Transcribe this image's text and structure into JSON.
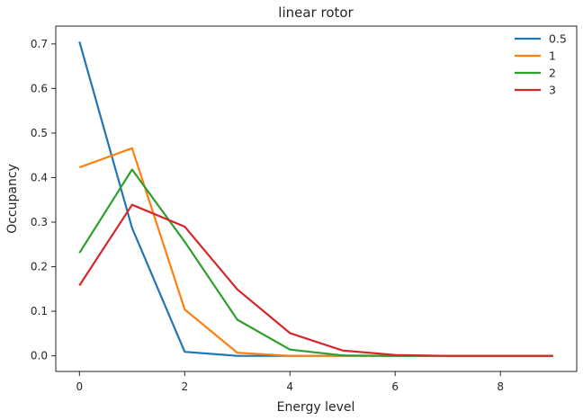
{
  "chart_data": {
    "type": "line",
    "title": "linear rotor",
    "xlabel": "Energy level",
    "ylabel": "Occupancy",
    "xlim": [
      -0.45,
      9.45
    ],
    "ylim": [
      -0.035,
      0.74
    ],
    "xticks": [
      0,
      2,
      4,
      6,
      8
    ],
    "yticks": [
      0.0,
      0.1,
      0.2,
      0.3,
      0.4,
      0.5,
      0.6,
      0.7
    ],
    "xtick_labels": [
      "0",
      "2",
      "4",
      "6",
      "8"
    ],
    "ytick_labels": [
      "0.0",
      "0.1",
      "0.2",
      "0.3",
      "0.4",
      "0.5",
      "0.6",
      "0.7"
    ],
    "grid": false,
    "legend_position": "top-right",
    "x": [
      0,
      1,
      2,
      3,
      4,
      5,
      6,
      7,
      8,
      9
    ],
    "series": [
      {
        "name": "0.5",
        "color": "#1f77b4",
        "values": [
          0.705,
          0.287,
          0.009,
          0.0,
          0.0,
          0.0,
          0.0,
          0.0,
          0.0,
          0.0
        ]
      },
      {
        "name": "1",
        "color": "#ff7f0e",
        "values": [
          0.423,
          0.466,
          0.104,
          0.007,
          0.0,
          0.0,
          0.0,
          0.0,
          0.0,
          0.0
        ]
      },
      {
        "name": "2",
        "color": "#2ca02c",
        "values": [
          0.231,
          0.418,
          0.256,
          0.081,
          0.014,
          0.001,
          0.0,
          0.0,
          0.0,
          0.0
        ]
      },
      {
        "name": "3",
        "color": "#d62728",
        "values": [
          0.158,
          0.339,
          0.29,
          0.149,
          0.051,
          0.012,
          0.002,
          0.0,
          0.0,
          0.0
        ]
      }
    ]
  }
}
